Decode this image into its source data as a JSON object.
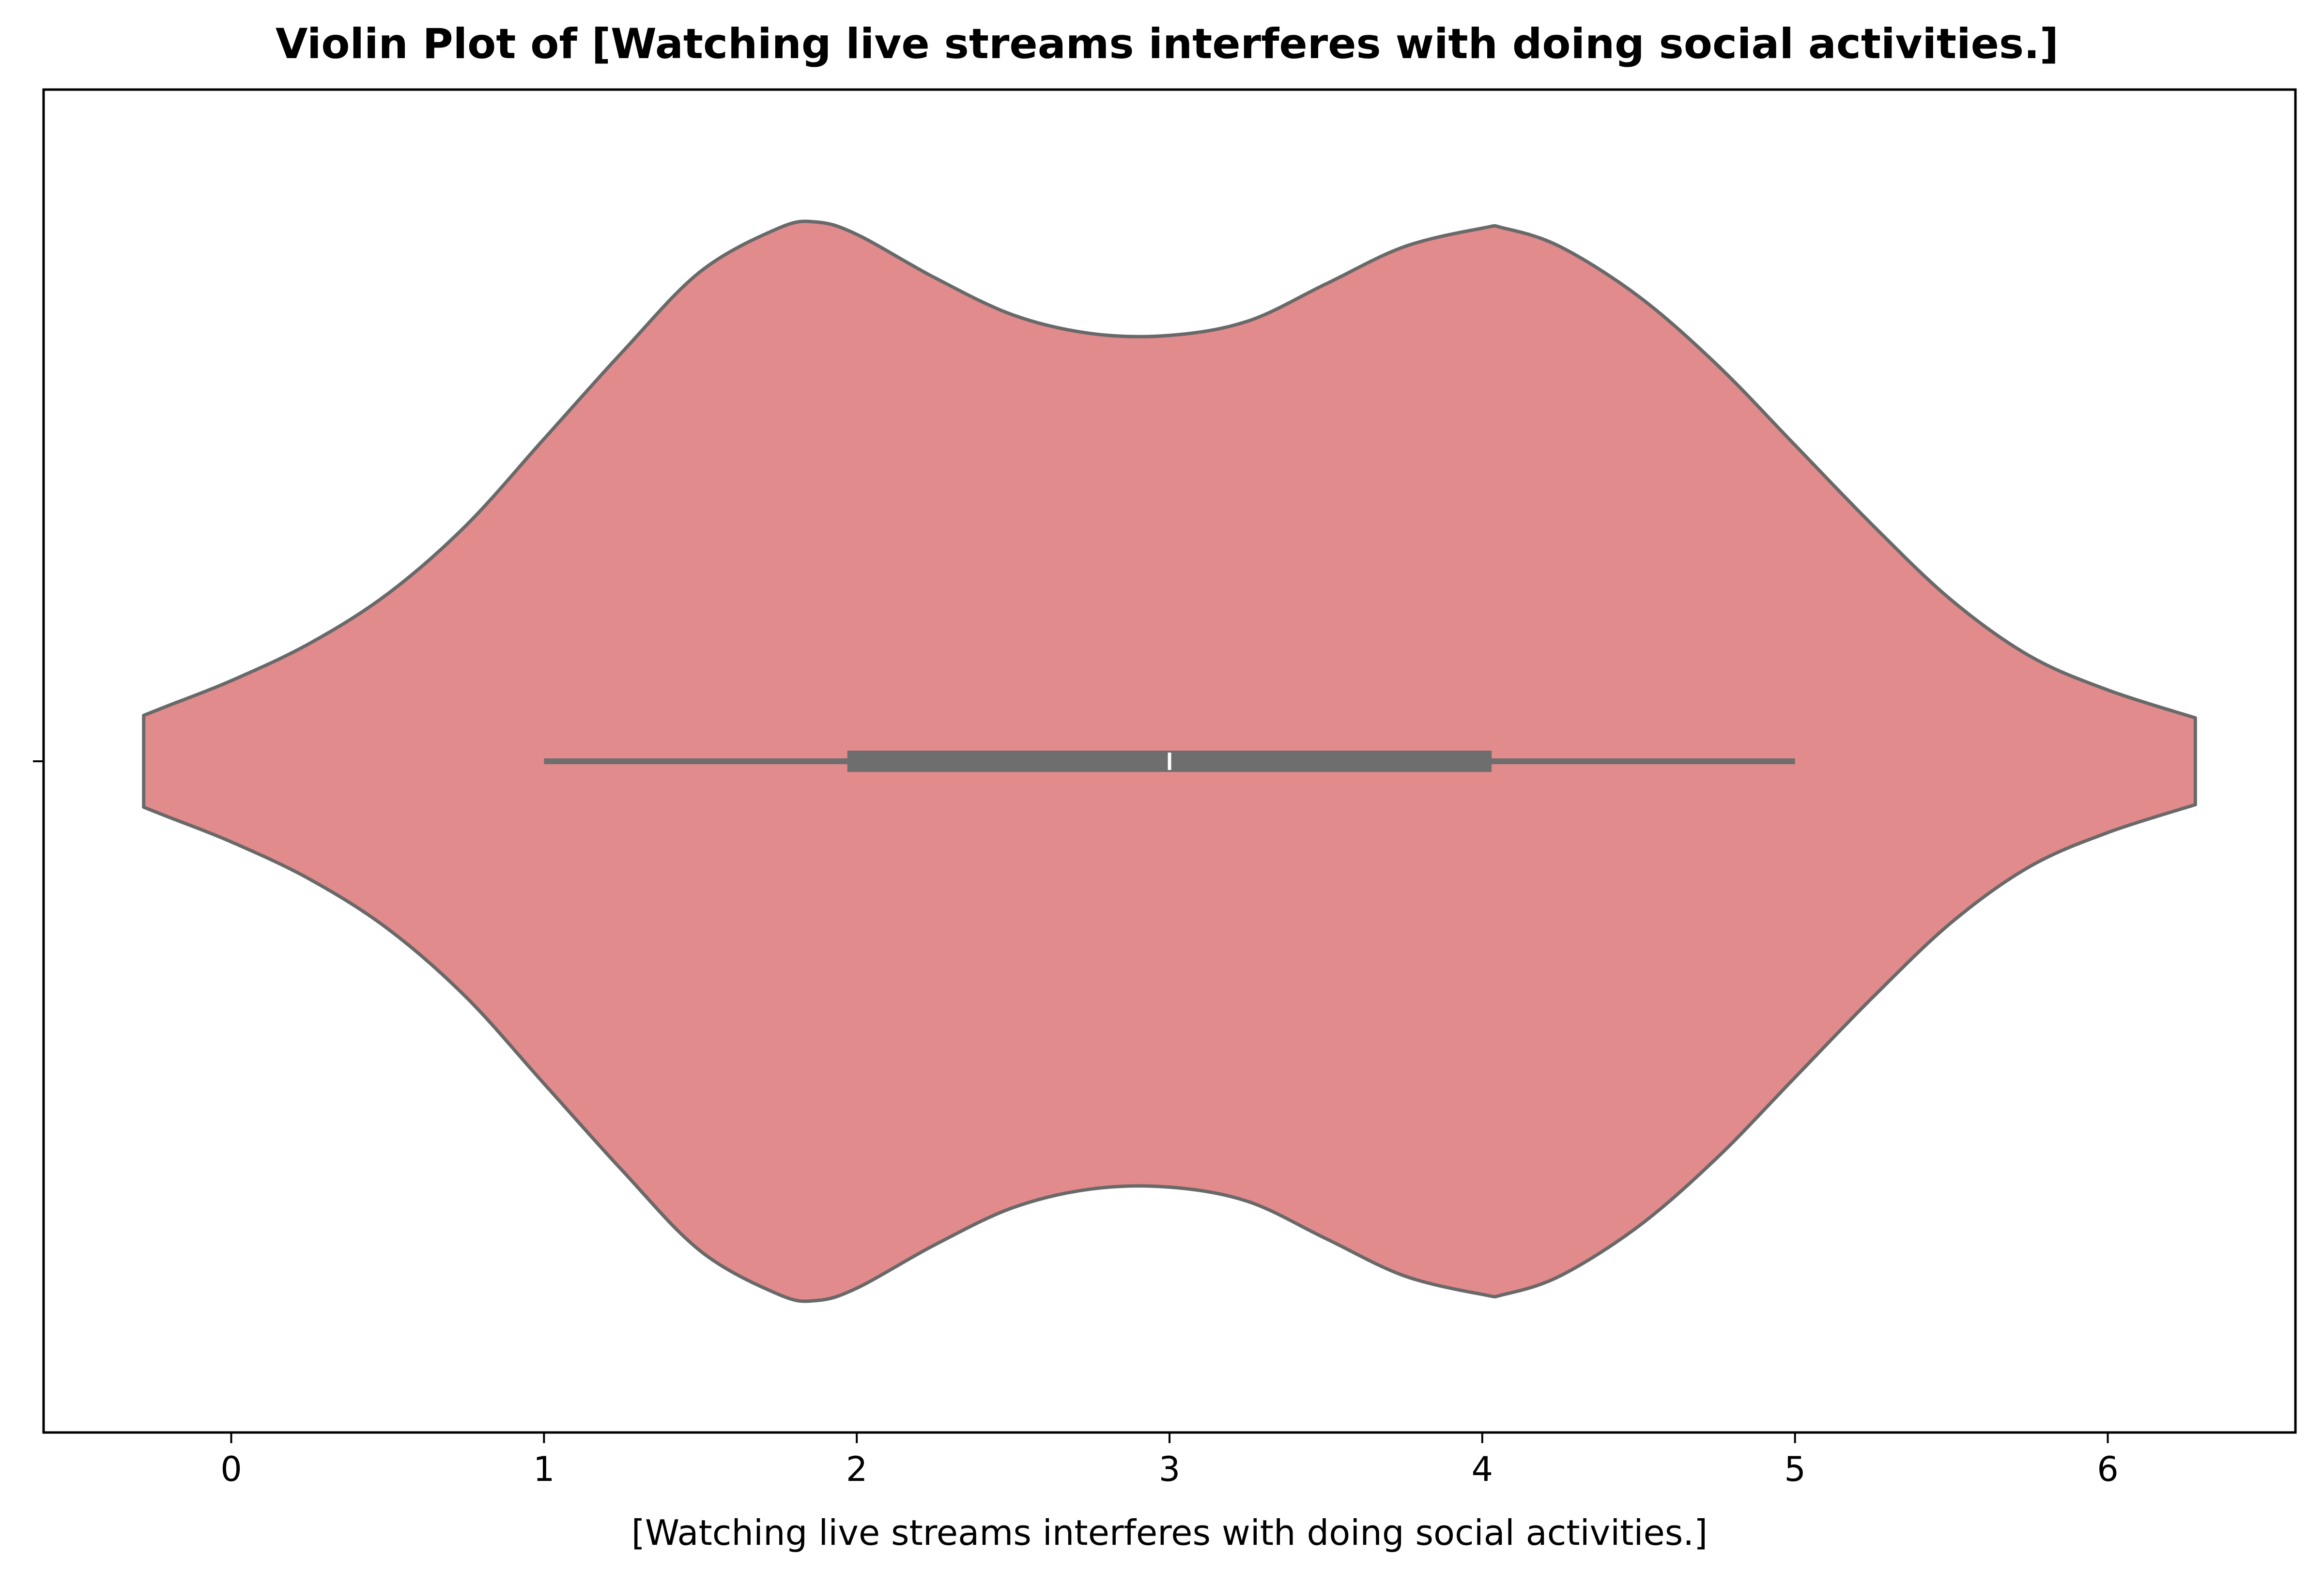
{
  "chart_data": {
    "type": "violin",
    "orientation": "horizontal",
    "title": "Violin Plot of [Watching live streams interferes with doing social activities.]",
    "xlabel": "[Watching live streams interferes with doing social activities.]",
    "ylabel": "",
    "xlim": [
      -0.6,
      6.6
    ],
    "xticks": [
      0,
      1,
      2,
      3,
      4,
      5,
      6
    ],
    "xtick_labels": [
      "0",
      "1",
      "2",
      "3",
      "4",
      "5",
      "6"
    ],
    "yticks": [
      0
    ],
    "ytick_labels": [
      ""
    ],
    "grid": false,
    "legend": "none",
    "colors": {
      "violin_fill": "#e18b8c",
      "outline": "#696969",
      "box": "#6e6e6e",
      "median": "#ffffff"
    },
    "violin": {
      "extent": [
        -0.28,
        6.28
      ],
      "density": {
        "x": [
          -0.28,
          -0.2,
          0,
          0.25,
          0.5,
          0.75,
          1.0,
          1.25,
          1.5,
          1.75,
          1.87,
          2.0,
          2.25,
          2.5,
          2.75,
          3.0,
          3.25,
          3.5,
          3.75,
          4.0,
          4.07,
          4.25,
          4.5,
          4.75,
          5.0,
          5.25,
          5.5,
          5.75,
          6.0,
          6.28
        ],
        "half_width": [
          0.074,
          0.09,
          0.13,
          0.19,
          0.27,
          0.38,
          0.52,
          0.66,
          0.79,
          0.86,
          0.87,
          0.85,
          0.78,
          0.72,
          0.69,
          0.687,
          0.71,
          0.77,
          0.83,
          0.86,
          0.86,
          0.83,
          0.75,
          0.64,
          0.51,
          0.38,
          0.26,
          0.17,
          0.115,
          0.07
        ]
      },
      "box": {
        "q1": 1.97,
        "median": 3.0,
        "q3": 4.03,
        "whisker_low": 1.0,
        "whisker_high": 5.0
      }
    }
  }
}
